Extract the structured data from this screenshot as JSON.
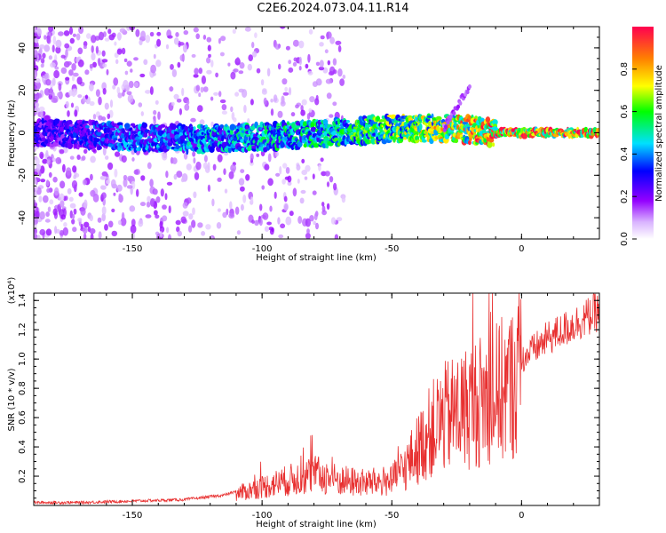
{
  "title": "C2E6.2024.073.04.11.R14",
  "chart_data": [
    {
      "type": "heatmap",
      "xlabel": "Height of straight line (km)",
      "ylabel": "Frequency (Hz)",
      "xlim": [
        -188,
        30
      ],
      "ylim": [
        -50,
        50
      ],
      "xticks": [
        -150,
        -100,
        -50,
        0
      ],
      "yticks": [
        -40,
        -20,
        0,
        20,
        40
      ],
      "colorbar": {
        "label": "Normalized spectral amplitude",
        "ticks": [
          "0.0",
          "0.2",
          "0.4",
          "0.6",
          "0.8"
        ],
        "range": [
          0,
          1
        ]
      },
      "description": "Spectral streak near 0 Hz strengthening toward higher altitude; scattered weak noise at low heights",
      "ridge": [
        {
          "x": -180,
          "y": 0,
          "amp": 0.3
        },
        {
          "x": -150,
          "y": -2,
          "amp": 0.4
        },
        {
          "x": -125,
          "y": -3,
          "amp": 0.45
        },
        {
          "x": -100,
          "y": -2,
          "amp": 0.5
        },
        {
          "x": -75,
          "y": 0,
          "amp": 0.55
        },
        {
          "x": -50,
          "y": 2,
          "amp": 0.65
        },
        {
          "x": -25,
          "y": 2,
          "amp": 0.8
        },
        {
          "x": -10,
          "y": 0,
          "amp": 0.95
        },
        {
          "x": 0,
          "y": 0,
          "amp": 0.95
        },
        {
          "x": 25,
          "y": 0,
          "amp": 0.9
        }
      ]
    },
    {
      "type": "line",
      "xlabel": "Height of straight line (km)",
      "ylabel": "SNR (10 * v/v)",
      "ymultiplier": "(x10⁴)",
      "xlim": [
        -188,
        30
      ],
      "ylim": [
        0,
        1.45
      ],
      "xticks": [
        -150,
        -100,
        -50,
        0
      ],
      "yticks": [
        0.2,
        0.4,
        0.6,
        0.8,
        1.0,
        1.2,
        1.4
      ],
      "series": [
        {
          "color": "#e83030",
          "x": [
            -188,
            -170,
            -150,
            -130,
            -115,
            -105,
            -100,
            -90,
            -80,
            -70,
            -60,
            -50,
            -45,
            -40,
            -35,
            -30,
            -25,
            -20,
            -15,
            -10,
            -5,
            0,
            10,
            20,
            30
          ],
          "y": [
            0.02,
            0.02,
            0.03,
            0.04,
            0.07,
            0.12,
            0.15,
            0.2,
            0.25,
            0.2,
            0.18,
            0.2,
            0.3,
            0.45,
            0.6,
            0.7,
            0.75,
            0.8,
            0.85,
            0.9,
            0.95,
            1.05,
            1.2,
            1.3,
            1.4
          ]
        }
      ]
    }
  ]
}
